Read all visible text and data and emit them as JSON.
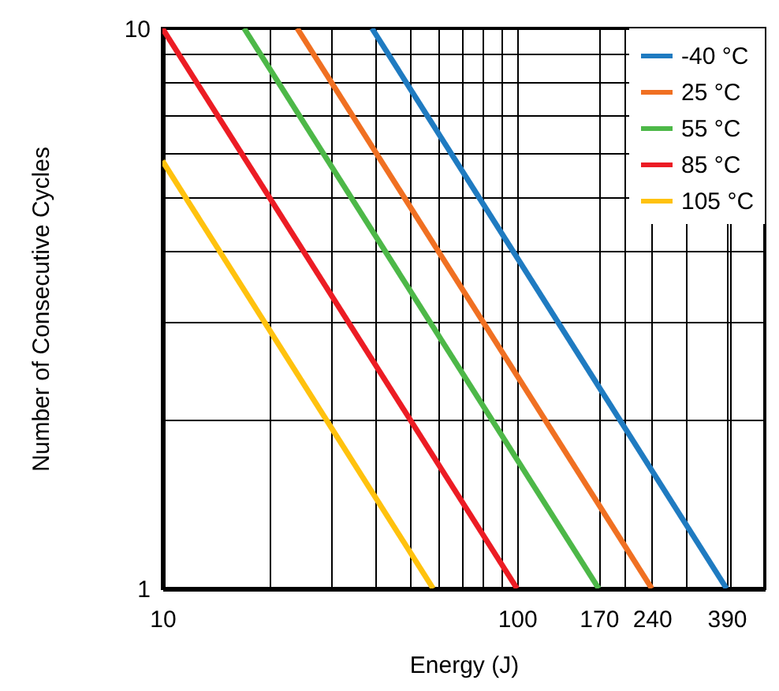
{
  "chart_data": {
    "type": "line",
    "xlabel": "Energy (J)",
    "ylabel": "Number of Consecutive Cycles",
    "log": "xy",
    "grid": true,
    "legend": "top right",
    "line_style": "solid",
    "marker": "none",
    "xlim": [
      10,
      500
    ],
    "ylim": [
      1,
      10
    ],
    "xticks": [
      10,
      {
        "value": 20,
        "label": null
      },
      {
        "value": 30,
        "label": null
      },
      {
        "value": 40,
        "label": null
      },
      {
        "value": 50,
        "label": null
      },
      {
        "value": 60,
        "label": null
      },
      {
        "value": 70,
        "label": null
      },
      {
        "value": 80,
        "label": null
      },
      {
        "value": 90,
        "label": null
      },
      100,
      170,
      {
        "value": 200,
        "label": null
      },
      240,
      {
        "value": 300,
        "label": null
      },
      390,
      {
        "value": 400,
        "label": null
      }
    ],
    "yticks": [
      1,
      {
        "value": 2,
        "label": null
      },
      {
        "value": 3,
        "label": null
      },
      {
        "value": 4,
        "label": null
      },
      {
        "value": 5,
        "label": null
      },
      {
        "value": 6,
        "label": null
      },
      {
        "value": 7,
        "label": null
      },
      {
        "value": 8,
        "label": null
      },
      {
        "value": 9,
        "label": null
      },
      10
    ],
    "series": [
      {
        "name": "-40 °C",
        "color": "#1f7bc1",
        "x": [
          39,
          390
        ],
        "values": [
          10,
          1
        ]
      },
      {
        "name": "25 °C",
        "color": "#f07022",
        "x": [
          24,
          240
        ],
        "values": [
          10,
          1
        ]
      },
      {
        "name": "55 °C",
        "color": "#4db848",
        "x": [
          17,
          170
        ],
        "values": [
          10,
          1
        ]
      },
      {
        "name": "85 °C",
        "color": "#ec1c24",
        "x": [
          10,
          100
        ],
        "values": [
          10,
          1
        ]
      },
      {
        "name": "105 °C",
        "color": "#ffc20e",
        "x": [
          10,
          58
        ],
        "values": [
          5.8,
          1
        ]
      }
    ]
  }
}
